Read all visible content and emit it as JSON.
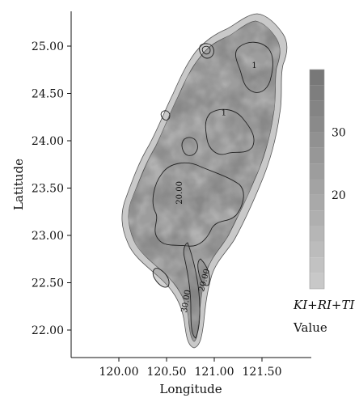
{
  "chart_data": {
    "type": "heatmap",
    "title": "",
    "xlabel": "Longitude",
    "ylabel": "Latitude",
    "xlim": [
      119.5,
      122.0
    ],
    "ylim": [
      21.8,
      25.35
    ],
    "x_ticks": [
      {
        "value": 120.0,
        "label": "120.00"
      },
      {
        "value": 120.5,
        "label": "120.50"
      },
      {
        "value": 121.0,
        "label": "121.00"
      },
      {
        "value": 121.5,
        "label": "121.50"
      }
    ],
    "y_ticks": [
      {
        "value": 22.0,
        "label": "22.00"
      },
      {
        "value": 22.5,
        "label": "22.50"
      },
      {
        "value": 23.0,
        "label": "23.00"
      },
      {
        "value": 23.5,
        "label": "23.50"
      },
      {
        "value": 24.0,
        "label": "24.00"
      },
      {
        "value": 24.5,
        "label": "24.50"
      },
      {
        "value": 25.0,
        "label": "25.00"
      }
    ],
    "contour_labels": [
      {
        "text": "20.00",
        "lon": 120.66,
        "lat": 23.45,
        "angle": -90
      },
      {
        "text": "20.00",
        "lon": 120.92,
        "lat": 22.52,
        "angle": -75
      },
      {
        "text": "30.00",
        "lon": 120.73,
        "lat": 22.3,
        "angle": -80
      },
      {
        "text": "1",
        "lon": 121.1,
        "lat": 24.27,
        "angle": 0
      },
      {
        "text": "1",
        "lon": 121.42,
        "lat": 24.77,
        "angle": 0
      }
    ],
    "legend": {
      "title_line1": "KI+RI+TI",
      "title_line2": "Value",
      "position": "right",
      "tick_labels": [
        {
          "value": 30,
          "label": "30"
        },
        {
          "value": 20,
          "label": "20"
        }
      ],
      "range": [
        5,
        40
      ]
    }
  }
}
